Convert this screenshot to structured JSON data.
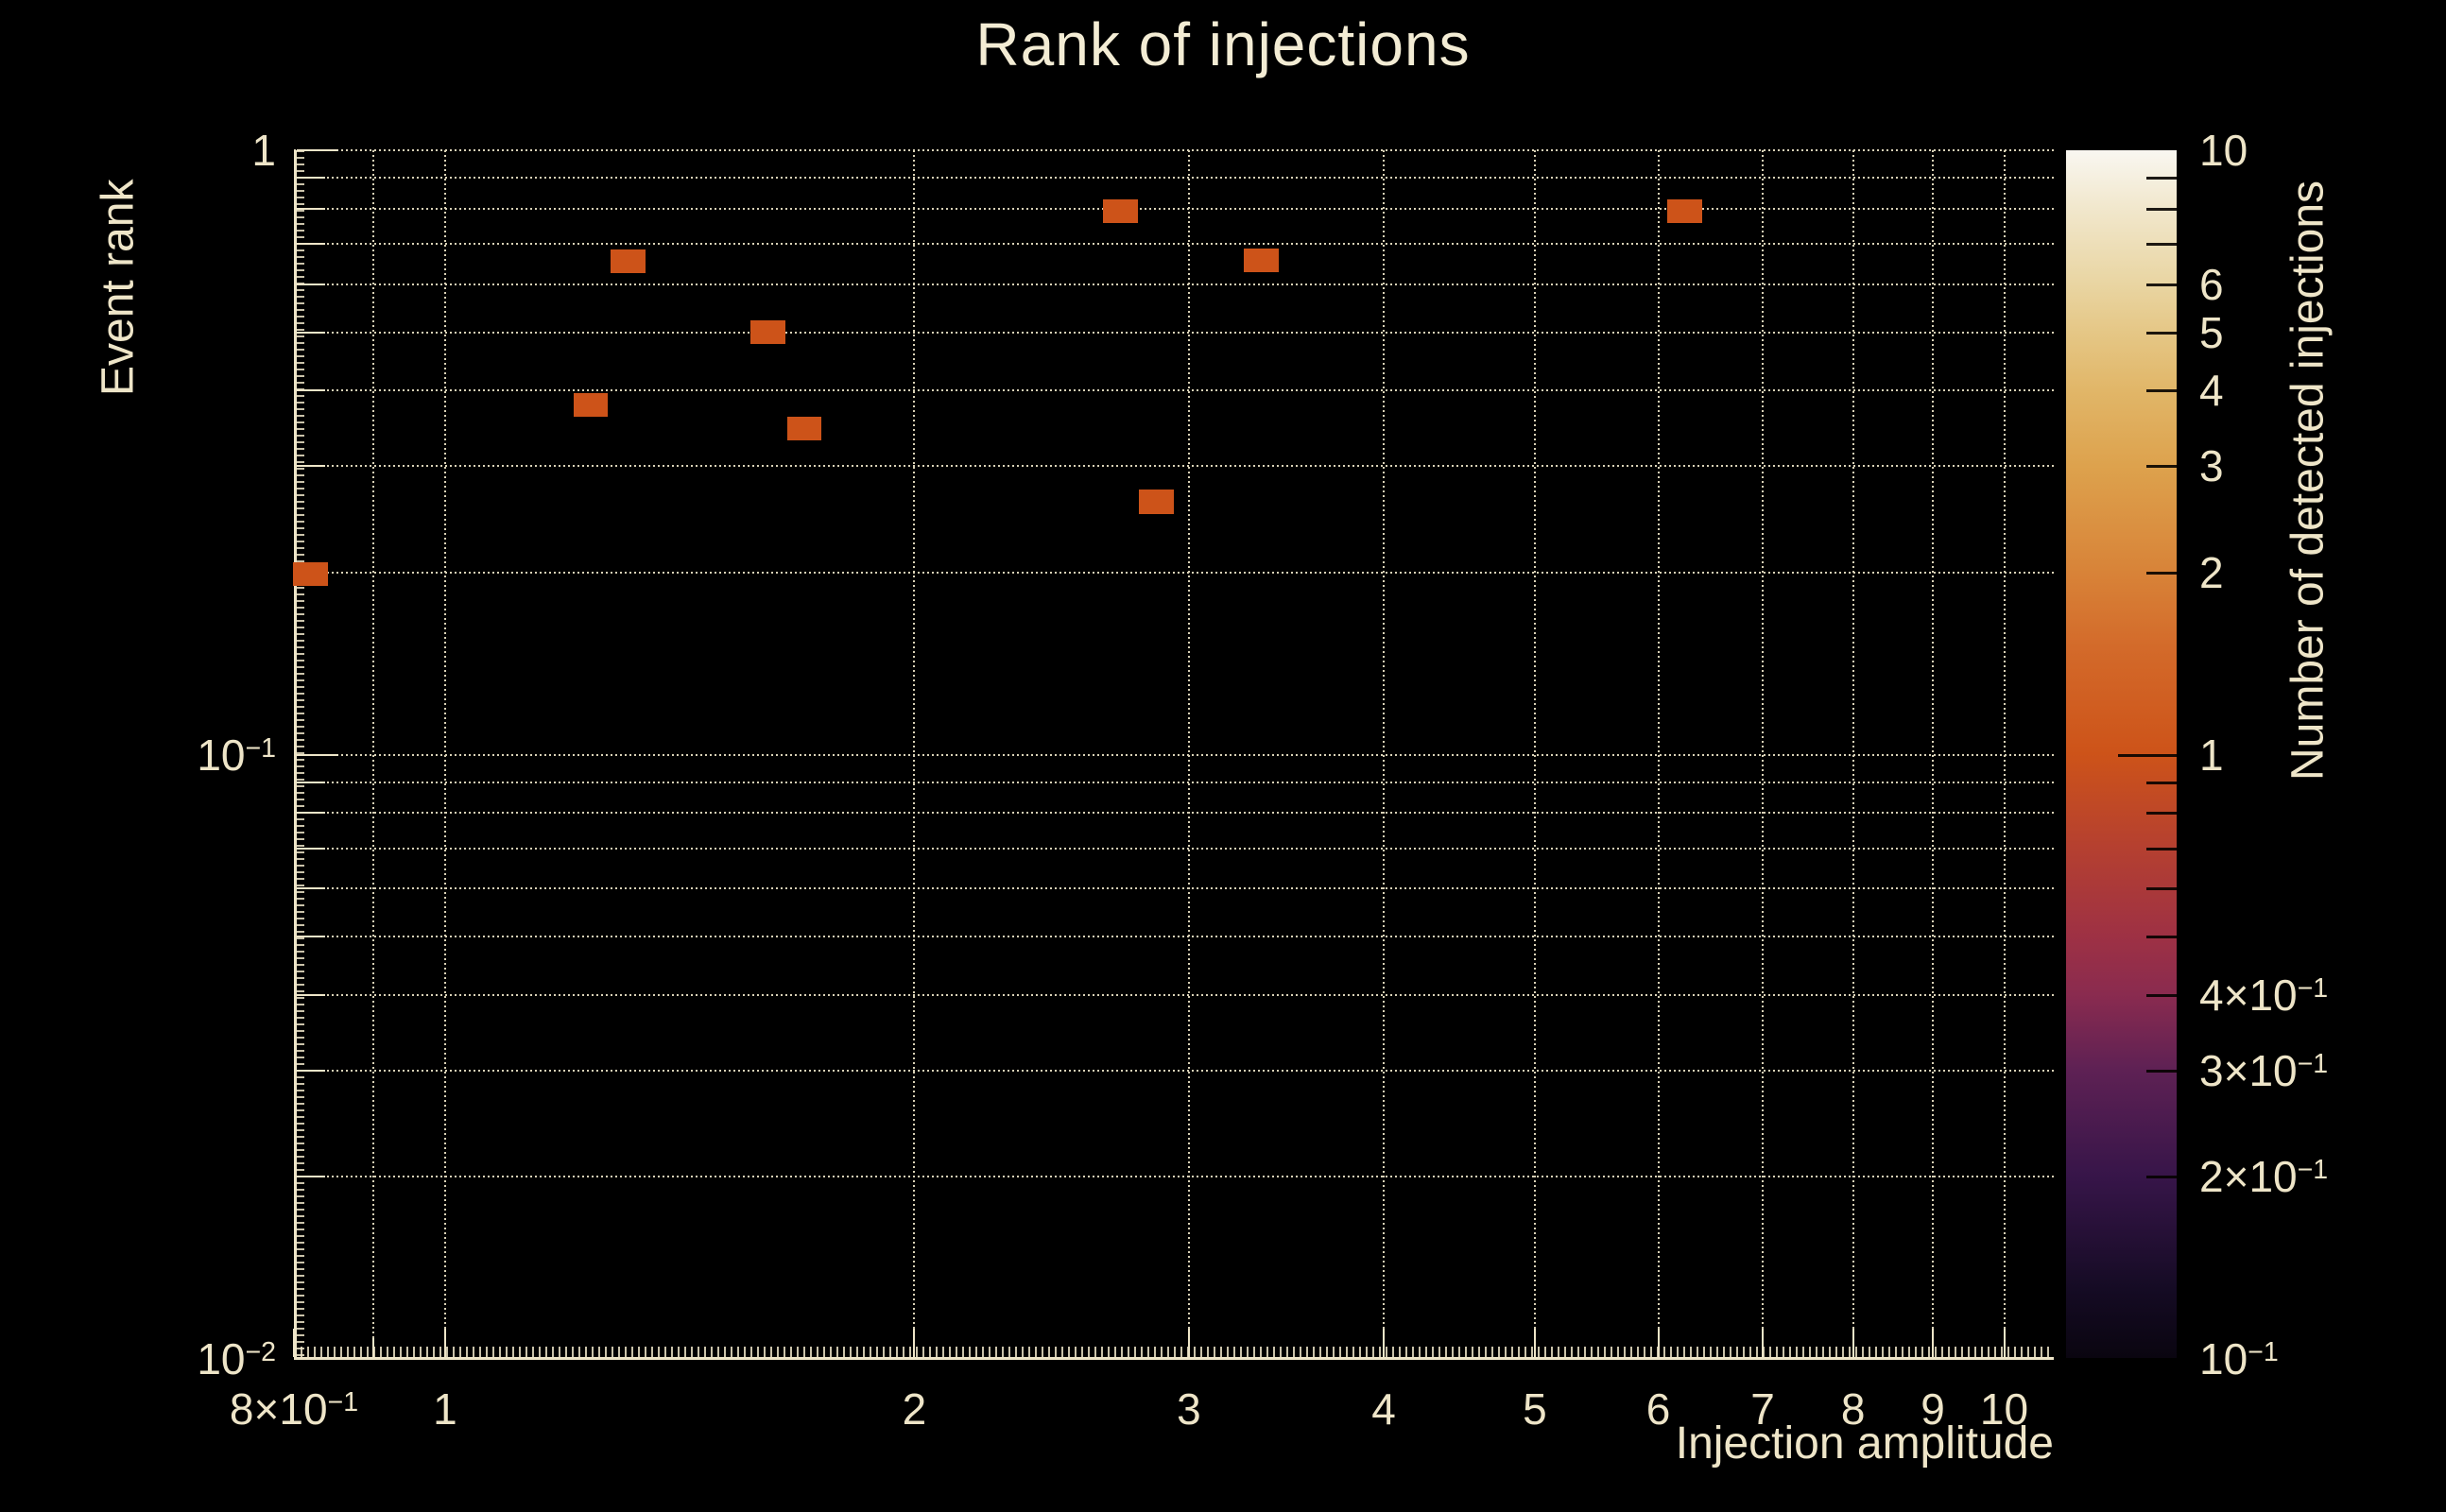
{
  "page": {
    "background": "#000000",
    "text_color": "#eee5c8"
  },
  "chart_data": {
    "type": "heatmap",
    "title": "Rank of injections",
    "xlabel": "Injection amplitude",
    "ylabel": "Event rank",
    "zlabel": "Number of detected injections",
    "xscale": "log",
    "yscale": "log",
    "zscale": "log",
    "xlim": [
      0.8,
      10.76
    ],
    "ylim": [
      0.01,
      1.0
    ],
    "zlim": [
      0.1,
      10
    ],
    "grid": true,
    "grid_style": "dotted",
    "legend_position": "right-colorbar",
    "bin_width_decades_x": 0.0224,
    "bin_width_decades_y": 0.0392,
    "points": [
      {
        "x": 0.82,
        "y": 0.199,
        "count": 1
      },
      {
        "x": 1.24,
        "y": 0.379,
        "count": 1
      },
      {
        "x": 1.31,
        "y": 0.656,
        "count": 1
      },
      {
        "x": 1.61,
        "y": 0.5,
        "count": 1
      },
      {
        "x": 1.7,
        "y": 0.346,
        "count": 1
      },
      {
        "x": 2.71,
        "y": 0.794,
        "count": 1
      },
      {
        "x": 2.86,
        "y": 0.262,
        "count": 1
      },
      {
        "x": 3.34,
        "y": 0.657,
        "count": 1
      },
      {
        "x": 6.24,
        "y": 0.794,
        "count": 1
      }
    ],
    "x_tick_labels": [
      {
        "value": 0.8,
        "base": "8×10",
        "sup": "−1"
      },
      {
        "value": 1,
        "base": "1"
      },
      {
        "value": 2,
        "base": "2"
      },
      {
        "value": 3,
        "base": "3"
      },
      {
        "value": 4,
        "base": "4"
      },
      {
        "value": 5,
        "base": "5"
      },
      {
        "value": 6,
        "base": "6"
      },
      {
        "value": 7,
        "base": "7"
      },
      {
        "value": 8,
        "base": "8"
      },
      {
        "value": 9,
        "base": "9"
      },
      {
        "value": 10,
        "base": "10"
      }
    ],
    "y_tick_labels": [
      {
        "value": 1,
        "base": "1"
      },
      {
        "value": 0.1,
        "base": "10",
        "sup": "−1"
      },
      {
        "value": 0.01,
        "base": "10",
        "sup": "−2"
      }
    ],
    "colorbar_tick_labels": [
      {
        "value": 10,
        "base": "10"
      },
      {
        "value": 6,
        "base": "6"
      },
      {
        "value": 5,
        "base": "5"
      },
      {
        "value": 4,
        "base": "4"
      },
      {
        "value": 3,
        "base": "3"
      },
      {
        "value": 2,
        "base": "2"
      },
      {
        "value": 1,
        "base": "1"
      },
      {
        "value": 0.4,
        "base": "4×10",
        "sup": "−1"
      },
      {
        "value": 0.3,
        "base": "3×10",
        "sup": "−1"
      },
      {
        "value": 0.2,
        "base": "2×10",
        "sup": "−1"
      },
      {
        "value": 0.1,
        "base": "10",
        "sup": "−1"
      }
    ],
    "colormap_stops": [
      {
        "value": 0.1,
        "color": "#0a0510"
      },
      {
        "value": 0.13,
        "color": "#150b24"
      },
      {
        "value": 0.2,
        "color": "#371549"
      },
      {
        "value": 0.3,
        "color": "#5e2154"
      },
      {
        "value": 0.4,
        "color": "#8a2b4f"
      },
      {
        "value": 0.5,
        "color": "#9e3144"
      },
      {
        "value": 0.7,
        "color": "#b54030"
      },
      {
        "value": 1.0,
        "color": "#cd5319"
      },
      {
        "value": 1.5,
        "color": "#d36a2a"
      },
      {
        "value": 2.0,
        "color": "#d88338"
      },
      {
        "value": 3.0,
        "color": "#dda24d"
      },
      {
        "value": 4.0,
        "color": "#e1b668"
      },
      {
        "value": 5.0,
        "color": "#e5c786"
      },
      {
        "value": 6.0,
        "color": "#e9d5a2"
      },
      {
        "value": 8.0,
        "color": "#f1e7cc"
      },
      {
        "value": 10.0,
        "color": "#f9f7f1"
      }
    ]
  }
}
